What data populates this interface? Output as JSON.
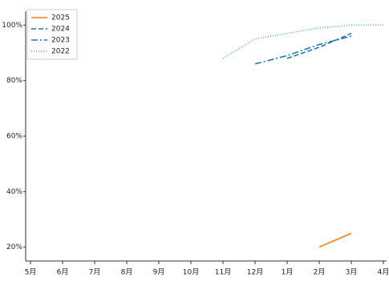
{
  "chart_data": {
    "type": "line",
    "categories": [
      "5月",
      "6月",
      "7月",
      "8月",
      "9月",
      "10月",
      "11月",
      "12月",
      "1月",
      "2月",
      "3月",
      "4月"
    ],
    "series": [
      {
        "name": "2025",
        "color": "#ff7f0e",
        "dash": "",
        "values": [
          null,
          null,
          null,
          null,
          null,
          null,
          null,
          null,
          null,
          20,
          25,
          null
        ]
      },
      {
        "name": "2024",
        "color": "#1f77b4",
        "dash": "6,3",
        "values": [
          null,
          null,
          null,
          null,
          null,
          null,
          null,
          null,
          88,
          92,
          97,
          null
        ]
      },
      {
        "name": "2023",
        "color": "#1f77b4",
        "dash": "8,3,2,3",
        "values": [
          null,
          null,
          null,
          null,
          null,
          null,
          null,
          86,
          89,
          93,
          96,
          null
        ]
      },
      {
        "name": "2022",
        "color": "#5aa6d6",
        "dash": "1,2",
        "values": [
          null,
          null,
          null,
          null,
          null,
          null,
          88,
          95,
          97,
          99,
          100,
          100
        ]
      }
    ],
    "ylim": [
      15,
      105
    ],
    "yticks": [
      {
        "value": 20,
        "label": "20%"
      },
      {
        "value": 40,
        "label": "40%"
      },
      {
        "value": 60,
        "label": "60%"
      },
      {
        "value": 80,
        "label": "80%"
      },
      {
        "value": 100,
        "label": "100%"
      }
    ],
    "grid": false,
    "legend": "upper-left"
  }
}
